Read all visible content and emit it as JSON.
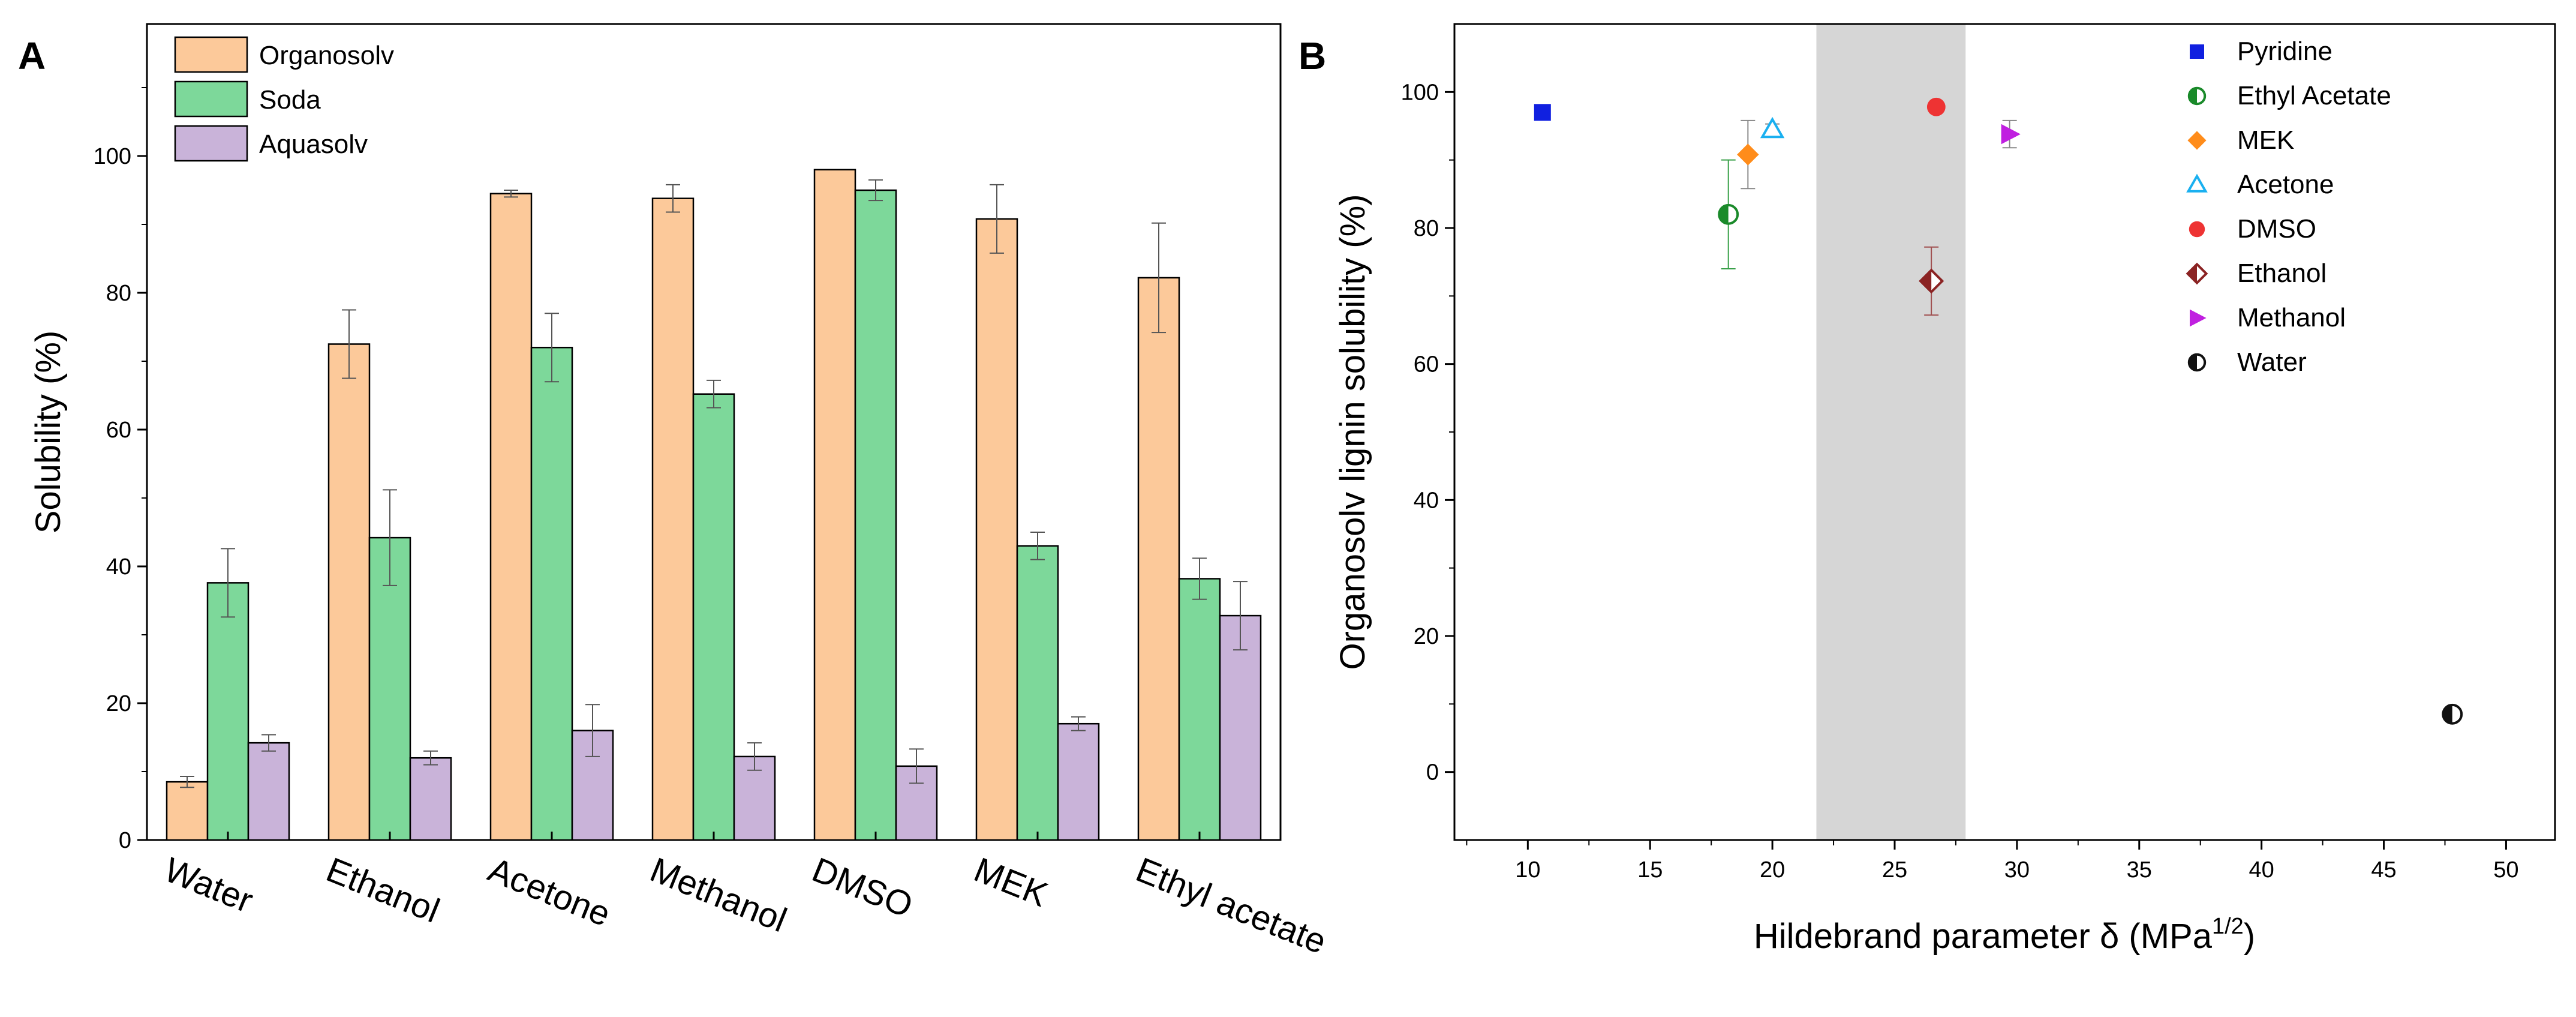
{
  "chart_data": [
    {
      "panel": "A",
      "type": "bar",
      "ylabel": "Solubility (%)",
      "xlabel": "",
      "ylim": [
        0,
        120
      ],
      "yticks": [
        0,
        20,
        40,
        60,
        80,
        100
      ],
      "categories": [
        "Water",
        "Ethanol",
        "Acetone",
        "Methanol",
        "DMSO",
        "MEK",
        "Ethyl acetate"
      ],
      "series": [
        {
          "name": "Organosolv",
          "color": "#fcc99a",
          "values": [
            8.5,
            72.5,
            94.5,
            93.8,
            98,
            90.8,
            82.2
          ],
          "errors": [
            0.8,
            5,
            0.5,
            2,
            0,
            5,
            8
          ]
        },
        {
          "name": "Soda",
          "color": "#7dd89a",
          "values": [
            37.6,
            44.2,
            72,
            65.2,
            95,
            43,
            38.2
          ],
          "errors": [
            5,
            7,
            5,
            2,
            1.5,
            2,
            3
          ]
        },
        {
          "name": "Aquasolv",
          "color": "#c9b3d9",
          "values": [
            14.2,
            12,
            16,
            12.2,
            10.8,
            17,
            32.8
          ],
          "errors": [
            1.2,
            1,
            3.8,
            2,
            2.5,
            1,
            5
          ]
        }
      ]
    },
    {
      "panel": "B",
      "type": "scatter",
      "xlabel": "Hildebrand parameter δ (MPa",
      "xlabel_sup": "1/2",
      "xlabel_end": ")",
      "ylabel": "Organosolv lignin solubility (%)",
      "xlim": [
        7,
        52
      ],
      "ylim": [
        -10,
        110
      ],
      "xticks": [
        10,
        15,
        20,
        25,
        30,
        35,
        40,
        45,
        50
      ],
      "yticks": [
        0,
        20,
        40,
        60,
        80,
        100
      ],
      "shaded_region": [
        21.8,
        27.9
      ],
      "points": [
        {
          "name": "Pyridine",
          "x": 10.6,
          "y": 97,
          "err": 0,
          "marker": "square",
          "color": "#1020e0"
        },
        {
          "name": "Ethyl Acetate",
          "x": 18.2,
          "y": 82,
          "err": 8,
          "marker": "half-circle",
          "color": "#1a8a2a"
        },
        {
          "name": "MEK",
          "x": 19,
          "y": 90.8,
          "err": 5,
          "marker": "diamond",
          "color": "#ff8c1a"
        },
        {
          "name": "Acetone",
          "x": 20,
          "y": 94.5,
          "err": 0.8,
          "marker": "triangle",
          "color": "#1ab0f0"
        },
        {
          "name": "DMSO",
          "x": 26.7,
          "y": 97.8,
          "err": 0,
          "marker": "circle",
          "color": "#ee3333"
        },
        {
          "name": "Ethanol",
          "x": 26.5,
          "y": 72.2,
          "err": 5,
          "marker": "half-diamond",
          "color": "#8b2323"
        },
        {
          "name": "Methanol",
          "x": 29.7,
          "y": 93.8,
          "err": 2,
          "marker": "right-triangle",
          "color": "#c020e0"
        },
        {
          "name": "Water",
          "x": 47.8,
          "y": 8.5,
          "err": 0.8,
          "marker": "half-circle-v",
          "color": "#111111"
        }
      ]
    }
  ],
  "labels": {
    "panel_a": "A",
    "panel_b": "B"
  }
}
